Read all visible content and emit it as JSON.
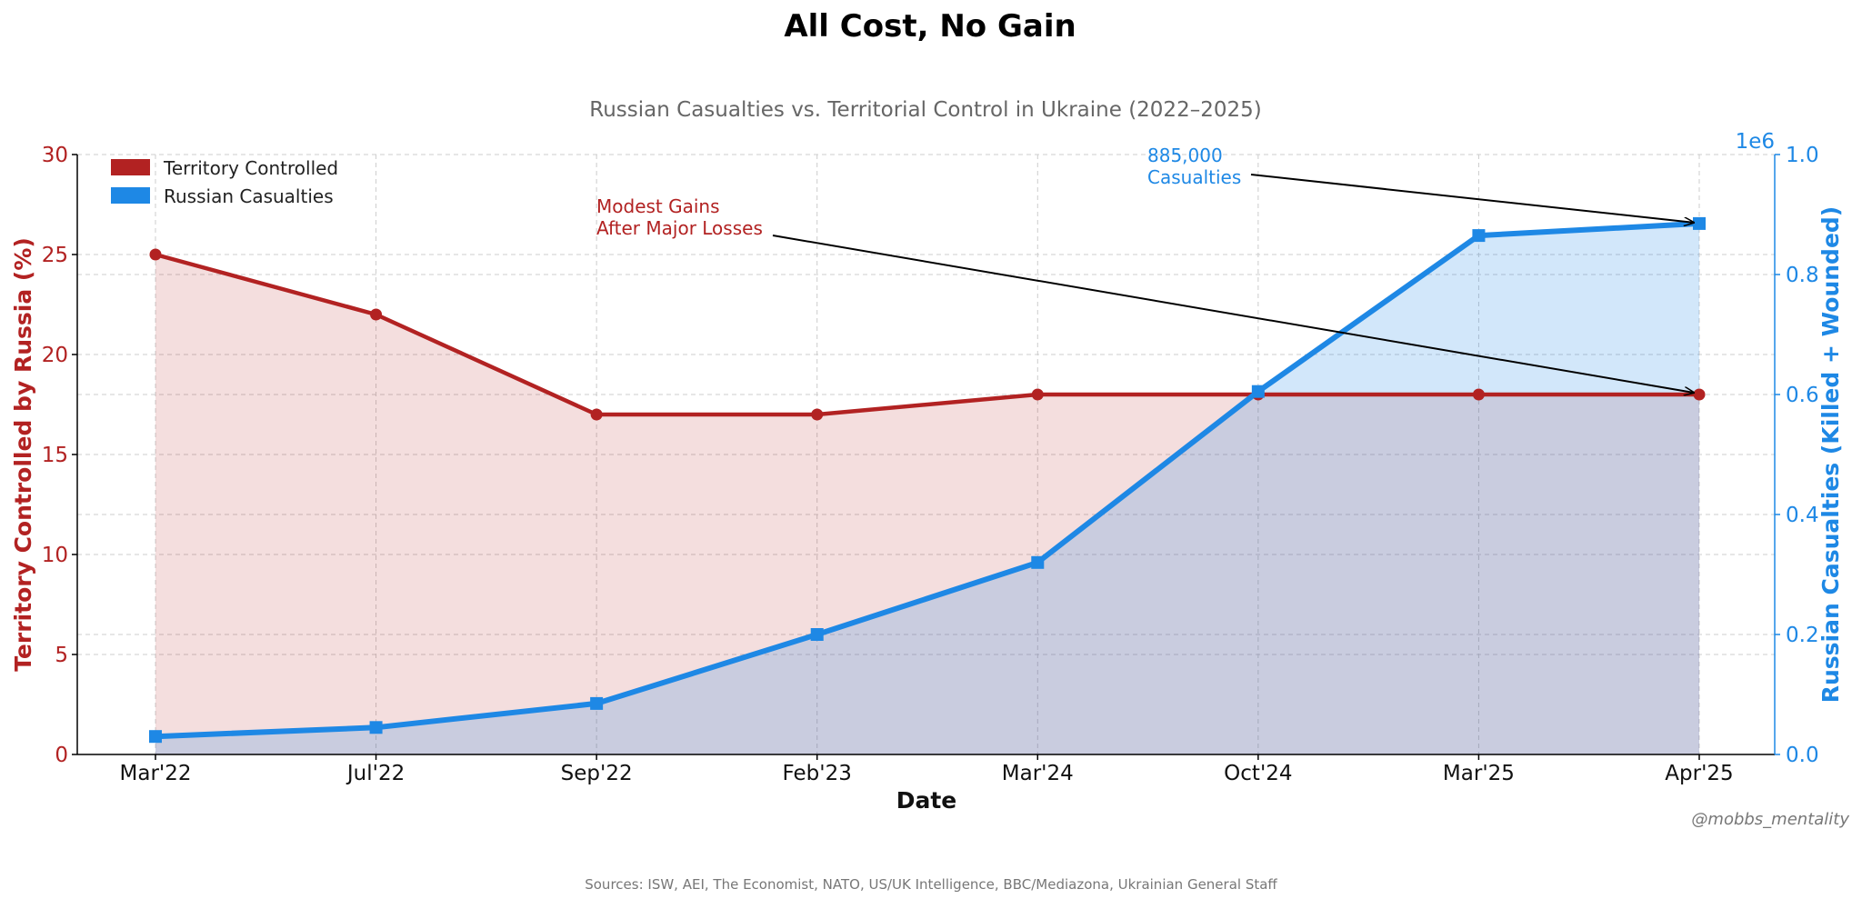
{
  "chart_data": {
    "type": "line",
    "title": "All Cost, No Gain",
    "subtitle": "Russian Casualties vs. Territorial Control in Ukraine (2022–2025)",
    "xlabel": "Date",
    "categories": [
      "Mar'22",
      "Jul'22",
      "Sep'22",
      "Feb'23",
      "Mar'24",
      "Oct'24",
      "Mar'25",
      "Apr'25"
    ],
    "y_left": {
      "label": "Territory Controlled by Russia (%)",
      "ylim": [
        0,
        30
      ],
      "ticks": [
        "0",
        "5",
        "10",
        "15",
        "20",
        "25",
        "30"
      ],
      "color": "#b22222"
    },
    "y_right": {
      "label": "Russian Casualties (Killed + Wounded)",
      "ylim": [
        0,
        1000000
      ],
      "ticks": [
        "0.0",
        "0.2",
        "0.4",
        "0.6",
        "0.8",
        "1.0"
      ],
      "offset_text": "1e6",
      "color": "#1e88e5"
    },
    "series": [
      {
        "name": "Territory Controlled",
        "axis": "left",
        "color": "#b22222",
        "marker": "circle",
        "values": [
          25,
          22,
          17,
          17,
          18,
          18,
          18,
          18
        ]
      },
      {
        "name": "Russian Casualties",
        "axis": "right",
        "color": "#1e88e5",
        "marker": "square",
        "values": [
          30000,
          45000,
          85000,
          200000,
          320000,
          605000,
          865000,
          885000
        ]
      }
    ],
    "legend_position": "top-left",
    "grid": true,
    "annotations": [
      {
        "text_lines": [
          "Modest Gains",
          "After Major Losses"
        ],
        "series": 0,
        "index": 7,
        "color": "#b22222"
      },
      {
        "text_lines": [
          "885,000",
          "Casualties"
        ],
        "series": 1,
        "index": 7,
        "color": "#1e88e5"
      }
    ],
    "source": "Sources: ISW, AEI, The Economist, NATO, US/UK Intelligence, BBC/Mediazona, Ukrainian General Staff",
    "credit": "@mobbs_mentality"
  }
}
